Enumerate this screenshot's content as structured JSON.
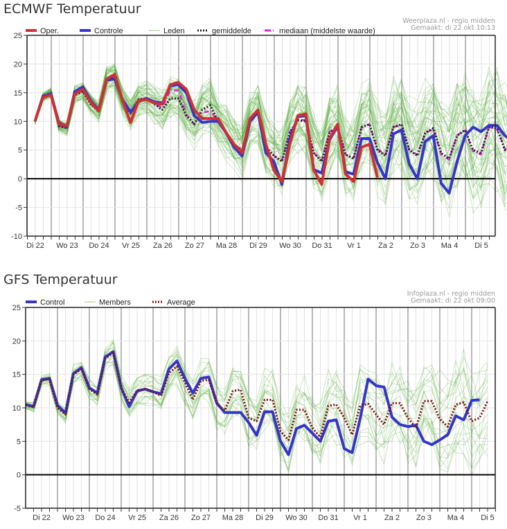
{
  "chart_data": [
    {
      "type": "line",
      "title": "ECMWF Temperatuur",
      "credit": [
        "Weerplaza.nl - regio midden",
        "Gemaakt: di 22 okt 10:13"
      ],
      "ylim": [
        -10,
        25
      ],
      "yticks": [
        25,
        20,
        15,
        10,
        5,
        0,
        -5,
        -10
      ],
      "xticks": [
        "Di 22",
        "Wo 23",
        "Do 24",
        "Vr 25",
        "Za 26",
        "Zo 27",
        "Ma 28",
        "Di 29",
        "Wo 30",
        "Do 31",
        "Vr 1",
        "Za 2",
        "Zo 3",
        "Ma 4",
        "Di 5"
      ],
      "x_step_hours": 6,
      "x_start_offset_steps": 1,
      "grid": true,
      "legend_position": "top",
      "legend": [
        {
          "label": "Oper.",
          "color": "#d03030",
          "style": "solid"
        },
        {
          "label": "Controle",
          "color": "#3535c8",
          "style": "solid"
        },
        {
          "label": "Leden",
          "color": "#b8dcaa",
          "style": "solid"
        },
        {
          "label": "gemiddelde",
          "color": "#222222",
          "style": "dotted"
        },
        {
          "label": "mediaan (middelste waarde)",
          "color": "#e020e0",
          "style": "dashdot"
        }
      ],
      "series": [
        {
          "name": "Oper.",
          "color": "#d03030",
          "values": [
            10,
            14.2,
            14.6,
            9.6,
            9.2,
            14.8,
            15.6,
            13.4,
            11.8,
            17.4,
            18.2,
            13.6,
            9.8,
            13.6,
            13.8,
            13.2,
            13,
            16.4,
            16.8,
            15.6,
            12,
            10.5,
            10.5,
            10.5,
            8,
            6,
            4.5,
            10.5,
            12,
            6,
            1.5,
            -0.5,
            6,
            11,
            11.3,
            1.5,
            -1,
            7,
            9.5,
            0.8,
            -0.5,
            5.5,
            6,
            0.2
          ]
        },
        {
          "name": "Controle",
          "color": "#3535c8",
          "values": [
            10,
            14.4,
            14.8,
            9.8,
            9,
            15.2,
            16,
            13.6,
            12,
            17.2,
            17.4,
            13.8,
            11.6,
            13.4,
            14,
            13.4,
            13.2,
            16.2,
            16.4,
            15,
            11,
            9.8,
            10,
            10,
            8,
            5.5,
            4,
            10,
            11.6,
            4.5,
            3,
            -1,
            7,
            10.8,
            11,
            1.6,
            1,
            6.8,
            9.2,
            1.2,
            0.8,
            7,
            7,
            2.8,
            0,
            7.8,
            8.5,
            2.5,
            0,
            6.5,
            7.5,
            -0.8,
            -2.5,
            3,
            7.5,
            9,
            8.2,
            9.3,
            9.3,
            7.5,
            6.5,
            9.3,
            9.3,
            4.5
          ]
        },
        {
          "name": "gemiddelde",
          "color": "#222222",
          "values": [
            10,
            14.2,
            15,
            9.2,
            8.8,
            14.6,
            15.2,
            13,
            11.7,
            17.4,
            17.8,
            13.4,
            11.4,
            13.8,
            14,
            13,
            12,
            14,
            14,
            11,
            9.5,
            12,
            12.8,
            10,
            8,
            6,
            5,
            10,
            11.5,
            5.5,
            4,
            3,
            8,
            10.2,
            10,
            4.5,
            3,
            8,
            9,
            4.2,
            3.5,
            9,
            9.5,
            5,
            4,
            9,
            9.5,
            5,
            4,
            8,
            8.8,
            4.5,
            3.5,
            7.5,
            8.5,
            5,
            4.5,
            9,
            8.8,
            5,
            4.5,
            8.5,
            9,
            6
          ]
        },
        {
          "name": "mediaan (middelste waarde)",
          "color": "#e020e0",
          "values": [
            10,
            14.2,
            14.8,
            9.2,
            8.8,
            14.8,
            15.4,
            13,
            11.8,
            17.4,
            17.8,
            13.4,
            11.6,
            13.8,
            14,
            13,
            12.4,
            15.4,
            15.4,
            11.2,
            9.5,
            11.5,
            11.8,
            10,
            8,
            6,
            5,
            10.2,
            11.6,
            5.5,
            4,
            3.2,
            8.2,
            10.3,
            10.2,
            4.5,
            3.2,
            8.2,
            9.2,
            4.2,
            3.6,
            9,
            9.5,
            5.2,
            4.2,
            9,
            9.3,
            5,
            4.2,
            8,
            8.6,
            4.2,
            3.3,
            7.6,
            8.5,
            4.8,
            4.2,
            9,
            8.7,
            5.2,
            4.5,
            8.6,
            9.2,
            6
          ]
        }
      ]
    },
    {
      "type": "line",
      "title": "GFS Temperatuur",
      "credit": [
        "Infoplaza.nl - regio midden",
        "Gemaakt: di 22 okt 09:00"
      ],
      "ylim": [
        -5,
        25
      ],
      "yticks": [
        25,
        20,
        15,
        10,
        5,
        0,
        -5
      ],
      "xticks": [
        "Di 22",
        "Wo 23",
        "Do 24",
        "Vr 25",
        "Za 26",
        "Zo 27",
        "Ma 28",
        "Di 29",
        "Wo 30",
        "Do 31",
        "Vr 1",
        "Za 2",
        "Zo 3",
        "Ma 4",
        "Di 5"
      ],
      "x_step_hours": 6,
      "x_start_offset_steps": 0,
      "grid": true,
      "legend_position": "top",
      "legend": [
        {
          "label": "Control",
          "color": "#3535c8",
          "style": "solid"
        },
        {
          "label": "Members",
          "color": "#b8dcaa",
          "style": "solid"
        },
        {
          "label": "Average",
          "color": "#7a1010",
          "style": "dotted"
        }
      ],
      "series": [
        {
          "name": "Control",
          "color": "#3535c8",
          "values": [
            10.5,
            10.2,
            14.2,
            14.4,
            10.4,
            9.2,
            15.1,
            16,
            13,
            12.2,
            17.6,
            18.4,
            13,
            10.2,
            12.5,
            12.8,
            12.4,
            12.1,
            15.8,
            17,
            14.4,
            12.2,
            14.4,
            14.6,
            10.7,
            9.3,
            9.3,
            9.3,
            7.8,
            5.9,
            9.4,
            9.4,
            5,
            3,
            6.9,
            7.4,
            6.2,
            5,
            8,
            8.2,
            3.9,
            3.3,
            8.4,
            14.3,
            13.3,
            13.1,
            8.6,
            7.5,
            7.2,
            7.4,
            5,
            4.5,
            5.2,
            6,
            8.8,
            8.2,
            11.1,
            11.2
          ]
        },
        {
          "name": "Average",
          "color": "#7a1010",
          "values": [
            10.4,
            10.1,
            14.1,
            14.3,
            10,
            9,
            15,
            15.8,
            12.8,
            12,
            17.4,
            18.2,
            13,
            10.8,
            12.6,
            12.8,
            12.4,
            11.8,
            15.2,
            16.2,
            13.8,
            11.2,
            14,
            14.2,
            10.6,
            9.6,
            12.5,
            12.7,
            8.5,
            8,
            11.2,
            11.2,
            6.5,
            5.2,
            9.7,
            9.7,
            7,
            5.6,
            10.3,
            10.5,
            8.5,
            6,
            10.3,
            10.6,
            9,
            7.5,
            10.7,
            10.7,
            8.5,
            7,
            11,
            11,
            8.3,
            7.2,
            10.5,
            10.8,
            8,
            8.5,
            11
          ]
        }
      ]
    }
  ]
}
